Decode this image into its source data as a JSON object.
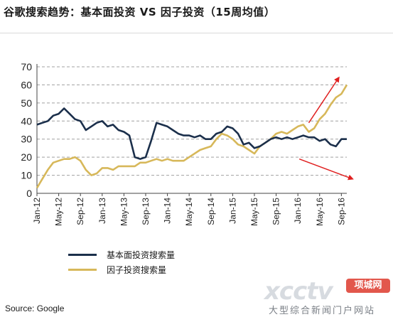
{
  "title": "谷歌搜索趋势：基本面投资 VS 因子投资（15周均值）",
  "source": "Source: Google",
  "watermark": {
    "logo": "xcctv",
    "badge": "项城网",
    "tagline": "大型综合新闻门户网站"
  },
  "colors": {
    "fundamental": "#1b2f4b",
    "factor": "#d7b85a",
    "arrow": "#e02020",
    "grid": "#a0a0a0"
  },
  "chart_data": {
    "type": "line",
    "title": "谷歌搜索趋势：基本面投资 VS 因子投资（15周均值）",
    "xlabel": "",
    "ylabel": "",
    "ylim": [
      0,
      70
    ],
    "yticks": [
      0,
      10,
      20,
      30,
      40,
      50,
      60,
      70
    ],
    "grid": "dashed horizontal",
    "legend": "bottom-left",
    "x_ticks": [
      "Jan-12",
      "May-12",
      "Sep-12",
      "Jan-13",
      "May-13",
      "Sep-13",
      "Jan-14",
      "May-14",
      "Sep-14",
      "Jan-15",
      "May-15",
      "Sep-15",
      "Jan-16",
      "May-16",
      "Sep-16"
    ],
    "x_range": [
      "2012-01",
      "2016-10"
    ],
    "series": [
      {
        "name": "基本面投资搜索量",
        "points": [
          [
            "2012-01",
            38
          ],
          [
            "2012-02",
            39
          ],
          [
            "2012-03",
            40
          ],
          [
            "2012-04",
            43
          ],
          [
            "2012-05",
            44
          ],
          [
            "2012-06",
            47
          ],
          [
            "2012-07",
            44
          ],
          [
            "2012-08",
            41
          ],
          [
            "2012-09",
            40
          ],
          [
            "2012-10",
            35
          ],
          [
            "2012-11",
            37
          ],
          [
            "2012-12",
            39
          ],
          [
            "2013-01",
            40
          ],
          [
            "2013-02",
            37
          ],
          [
            "2013-03",
            38
          ],
          [
            "2013-04",
            35
          ],
          [
            "2013-05",
            34
          ],
          [
            "2013-06",
            32
          ],
          [
            "2013-07",
            20
          ],
          [
            "2013-08",
            19
          ],
          [
            "2013-09",
            20
          ],
          [
            "2013-10",
            29
          ],
          [
            "2013-11",
            39
          ],
          [
            "2013-12",
            38
          ],
          [
            "2014-01",
            37
          ],
          [
            "2014-02",
            35
          ],
          [
            "2014-03",
            33
          ],
          [
            "2014-04",
            32
          ],
          [
            "2014-05",
            32
          ],
          [
            "2014-06",
            31
          ],
          [
            "2014-07",
            32
          ],
          [
            "2014-08",
            30
          ],
          [
            "2014-09",
            30
          ],
          [
            "2014-10",
            33
          ],
          [
            "2014-11",
            34
          ],
          [
            "2014-12",
            37
          ],
          [
            "2015-01",
            36
          ],
          [
            "2015-02",
            33
          ],
          [
            "2015-03",
            27
          ],
          [
            "2015-04",
            28
          ],
          [
            "2015-05",
            25
          ],
          [
            "2015-06",
            26
          ],
          [
            "2015-07",
            28
          ],
          [
            "2015-08",
            30
          ],
          [
            "2015-09",
            31
          ],
          [
            "2015-10",
            30
          ],
          [
            "2015-11",
            31
          ],
          [
            "2015-12",
            30
          ],
          [
            "2016-01",
            31
          ],
          [
            "2016-02",
            32
          ],
          [
            "2016-03",
            31
          ],
          [
            "2016-04",
            31
          ],
          [
            "2016-05",
            29
          ],
          [
            "2016-06",
            30
          ],
          [
            "2016-07",
            27
          ],
          [
            "2016-08",
            26
          ],
          [
            "2016-09",
            30
          ],
          [
            "2016-10",
            30
          ]
        ]
      },
      {
        "name": "因子投资搜索量",
        "points": [
          [
            "2012-01",
            3
          ],
          [
            "2012-02",
            8
          ],
          [
            "2012-03",
            13
          ],
          [
            "2012-04",
            17
          ],
          [
            "2012-05",
            18
          ],
          [
            "2012-06",
            19
          ],
          [
            "2012-07",
            19
          ],
          [
            "2012-08",
            20
          ],
          [
            "2012-09",
            18
          ],
          [
            "2012-10",
            13
          ],
          [
            "2012-11",
            10
          ],
          [
            "2012-12",
            11
          ],
          [
            "2013-01",
            14
          ],
          [
            "2013-02",
            14
          ],
          [
            "2013-03",
            13
          ],
          [
            "2013-04",
            15
          ],
          [
            "2013-05",
            15
          ],
          [
            "2013-06",
            15
          ],
          [
            "2013-07",
            15
          ],
          [
            "2013-08",
            17
          ],
          [
            "2013-09",
            17
          ],
          [
            "2013-10",
            18
          ],
          [
            "2013-11",
            19
          ],
          [
            "2013-12",
            18
          ],
          [
            "2014-01",
            19
          ],
          [
            "2014-02",
            18
          ],
          [
            "2014-03",
            18
          ],
          [
            "2014-04",
            18
          ],
          [
            "2014-05",
            20
          ],
          [
            "2014-06",
            22
          ],
          [
            "2014-07",
            24
          ],
          [
            "2014-08",
            25
          ],
          [
            "2014-09",
            26
          ],
          [
            "2014-10",
            30
          ],
          [
            "2014-11",
            33
          ],
          [
            "2014-12",
            32
          ],
          [
            "2015-01",
            30
          ],
          [
            "2015-02",
            27
          ],
          [
            "2015-03",
            26
          ],
          [
            "2015-04",
            24
          ],
          [
            "2015-05",
            22
          ],
          [
            "2015-06",
            26
          ],
          [
            "2015-07",
            28
          ],
          [
            "2015-08",
            30
          ],
          [
            "2015-09",
            33
          ],
          [
            "2015-10",
            34
          ],
          [
            "2015-11",
            33
          ],
          [
            "2015-12",
            35
          ],
          [
            "2016-01",
            37
          ],
          [
            "2016-02",
            38
          ],
          [
            "2016-03",
            34
          ],
          [
            "2016-04",
            36
          ],
          [
            "2016-05",
            41
          ],
          [
            "2016-06",
            44
          ],
          [
            "2016-07",
            49
          ],
          [
            "2016-08",
            53
          ],
          [
            "2016-09",
            55
          ],
          [
            "2016-10",
            60
          ]
        ]
      }
    ]
  }
}
